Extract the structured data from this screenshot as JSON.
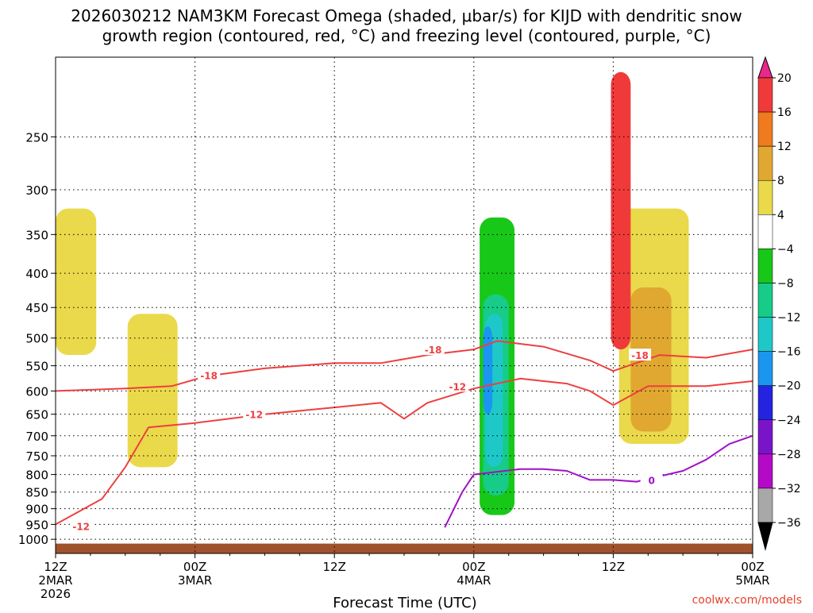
{
  "chart_data": {
    "type": "heatmap",
    "title_line1": "2026030212 NAM3KM Forecast Omega (shaded, μbar/s) for KIJD with dendritic snow",
    "title_line2": "growth region (contoured, red, °C) and freezing level (contoured, purple, °C)",
    "xlabel": "Forecast Time (UTC)",
    "ylabel": "",
    "credit": "coolwx.com/models",
    "x_hours_range": [
      0,
      60
    ],
    "x_ticks": [
      {
        "hour": 0,
        "line1": "12Z",
        "line2": "2MAR",
        "line3": "2026"
      },
      {
        "hour": 12,
        "line1": "00Z",
        "line2": "3MAR",
        "line3": ""
      },
      {
        "hour": 24,
        "line1": "12Z",
        "line2": "",
        "line3": ""
      },
      {
        "hour": 36,
        "line1": "00Z",
        "line2": "4MAR",
        "line3": ""
      },
      {
        "hour": 48,
        "line1": "12Z",
        "line2": "",
        "line3": ""
      },
      {
        "hour": 60,
        "line1": "00Z",
        "line2": "5MAR",
        "line3": ""
      }
    ],
    "y_axis_scale": "log-pressure",
    "y_range_hpa": [
      1050,
      190
    ],
    "y_ticks": [
      250,
      300,
      350,
      400,
      450,
      500,
      550,
      600,
      650,
      700,
      750,
      800,
      850,
      900,
      950,
      1000
    ],
    "grid": "dotted horizontal",
    "colorbar": {
      "levels": [
        20,
        16,
        12,
        8,
        4,
        -4,
        -8,
        -12,
        -16,
        -20,
        -24,
        -28,
        -32,
        -36
      ],
      "colors": [
        "#e8298a",
        "#f03a3a",
        "#f07a1e",
        "#e0a830",
        "#ead94a",
        "#ffffff",
        "#18c818",
        "#16cc88",
        "#1ec8c8",
        "#1a96f0",
        "#2424e0",
        "#7a14c8",
        "#b40ac8",
        "#a8a8a8",
        "#000000"
      ]
    },
    "omega_regions": [
      {
        "level": 4,
        "hours": [
          0,
          3.5
        ],
        "pressure": [
          320,
          530
        ]
      },
      {
        "level": 4,
        "hours": [
          6.2,
          10.5
        ],
        "pressure": [
          460,
          780
        ]
      },
      {
        "level": 4,
        "hours": [
          48.5,
          54.5
        ],
        "pressure": [
          320,
          720
        ]
      },
      {
        "level": 8,
        "hours": [
          49.5,
          53
        ],
        "pressure": [
          420,
          690
        ]
      },
      {
        "level": 16,
        "hours": [
          47.8,
          49.5
        ],
        "pressure": [
          200,
          520
        ]
      },
      {
        "level": -4,
        "hours": [
          28.5,
          44
        ],
        "pressure": [
          250,
          980
        ]
      },
      {
        "level": -8,
        "hours": [
          36.5,
          39.5
        ],
        "pressure": [
          330,
          920
        ]
      },
      {
        "level": -12,
        "hours": [
          36.8,
          39
        ],
        "pressure": [
          430,
          860
        ]
      },
      {
        "level": -16,
        "hours": [
          37,
          38.5
        ],
        "pressure": [
          460,
          780
        ]
      },
      {
        "level": -20,
        "hours": [
          36.8,
          37.6
        ],
        "pressure": [
          480,
          650
        ]
      }
    ],
    "series": [
      {
        "name": "-18",
        "color": "#ee3f3f",
        "hours": [
          0,
          6,
          10,
          13,
          18,
          24,
          28,
          32,
          36,
          38,
          42,
          46,
          48,
          52,
          56,
          60
        ],
        "pressure": [
          600,
          595,
          590,
          570,
          555,
          545,
          545,
          530,
          520,
          505,
          515,
          540,
          560,
          530,
          535,
          520
        ]
      },
      {
        "name": "-12",
        "color": "#ee3f3f",
        "hours": [
          0,
          4,
          6,
          8,
          12,
          18,
          24,
          28,
          30,
          32,
          36,
          40,
          44,
          46,
          48,
          51,
          56,
          60
        ],
        "pressure": [
          950,
          870,
          780,
          680,
          670,
          650,
          635,
          625,
          660,
          625,
          595,
          575,
          585,
          600,
          630,
          590,
          590,
          580
        ]
      },
      {
        "name": "0",
        "color": "#a010c8",
        "hours": [
          33.5,
          35,
          36,
          40,
          42,
          44,
          46,
          48,
          50,
          54,
          56,
          58,
          60
        ],
        "pressure": [
          960,
          850,
          800,
          785,
          785,
          790,
          815,
          815,
          820,
          790,
          760,
          720,
          700
        ]
      }
    ],
    "contour_labels": [
      {
        "text": "-18",
        "hour": 32.5,
        "pressure": 520
      },
      {
        "text": "-18",
        "hour": 13.2,
        "pressure": 568
      },
      {
        "text": "-18",
        "hour": 50.3,
        "pressure": 530
      },
      {
        "text": "-12",
        "hour": 34.6,
        "pressure": 590
      },
      {
        "text": "-12",
        "hour": 17.1,
        "pressure": 650
      },
      {
        "text": "-12",
        "hour": 2.2,
        "pressure": 955
      },
      {
        "text": "0",
        "hour": 51.3,
        "pressure": 815
      }
    ],
    "ground": {
      "color": "#a0522d",
      "pressure_top": 1015
    }
  }
}
